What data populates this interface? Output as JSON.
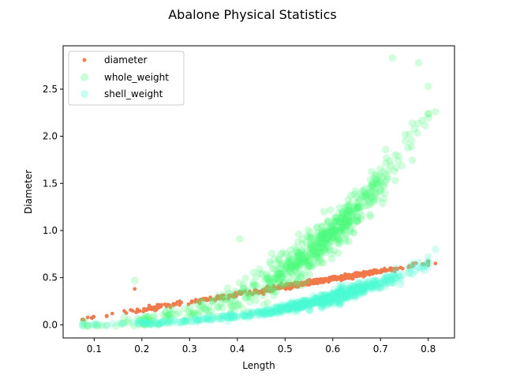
{
  "chart_data": {
    "type": "scatter",
    "title": "Abalone Physical Statistics",
    "xlabel": "Length",
    "ylabel": "Diameter",
    "xlim": [
      0.035,
      0.855
    ],
    "ylim": [
      -0.14,
      2.96
    ],
    "xticks": [
      0.1,
      0.2,
      0.3,
      0.4,
      0.5,
      0.6,
      0.7,
      0.8
    ],
    "yticks": [
      0.0,
      0.5,
      1.0,
      1.5,
      2.0,
      2.5
    ],
    "legend_position": "top-left",
    "series": [
      {
        "name": "diameter",
        "color": "#f0784a",
        "marker": "small-dot",
        "opacity": 0.95,
        "model": {
          "slope": 0.82,
          "intercept": -0.005,
          "noise": 0.012
        },
        "x_range": [
          0.075,
          0.815
        ],
        "outliers": [
          {
            "x": 0.185,
            "y": 0.38
          },
          {
            "x": 0.075,
            "y": 0.055
          },
          {
            "x": 0.815,
            "y": 0.65
          }
        ]
      },
      {
        "name": "whole_weight",
        "color": "#4dfa7a",
        "marker": "large-circle",
        "opacity": 0.25,
        "model": {
          "a": 4.3,
          "b": 2.9,
          "noise": 0.1
        },
        "x_range": [
          0.075,
          0.815
        ],
        "outliers": [
          {
            "x": 0.185,
            "y": 0.47
          },
          {
            "x": 0.405,
            "y": 0.91
          },
          {
            "x": 0.725,
            "y": 2.83
          },
          {
            "x": 0.78,
            "y": 2.78
          },
          {
            "x": 0.815,
            "y": 2.26
          },
          {
            "x": 0.8,
            "y": 2.53
          }
        ]
      },
      {
        "name": "shell_weight",
        "color": "#4dfad2",
        "marker": "large-circle",
        "opacity": 0.25,
        "model": {
          "a": 1.18,
          "b": 2.75,
          "noise": 0.035
        },
        "x_range": [
          0.075,
          0.815
        ],
        "outliers": [
          {
            "x": 0.815,
            "y": 0.8
          },
          {
            "x": 0.78,
            "y": 0.66
          },
          {
            "x": 0.075,
            "y": 0.005
          }
        ]
      }
    ]
  }
}
